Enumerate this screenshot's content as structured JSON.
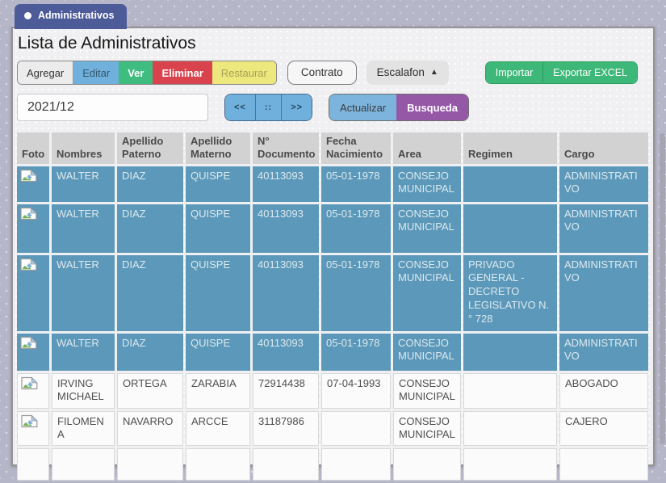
{
  "tab": {
    "label": "Administrativos"
  },
  "page": {
    "title": "Lista de Administrativos"
  },
  "toolbar": {
    "agregar": "Agregar",
    "editar": "Editar",
    "ver": "Ver",
    "eliminar": "Eliminar",
    "restaurar": "Restaurar",
    "contrato": "Contrato",
    "escalafon": "Escalafon",
    "escalafon_caret": "▲",
    "importar": "Importar",
    "exportar_excel": "Exportar EXCEL"
  },
  "filters": {
    "period_value": "2021/12",
    "pager_prev": "<<",
    "pager_mid": "::",
    "pager_next": ">>",
    "actualizar": "Actualizar",
    "busqueda": "Busqueda"
  },
  "table": {
    "columns": [
      "Foto",
      "Nombres",
      "Apellido Paterno",
      "Apellido Materno",
      "N° Documento",
      "Fecha Nacimiento",
      "Area",
      "Regimen",
      "Cargo"
    ],
    "rows": [
      {
        "has_foto": true,
        "nombres": "WALTER",
        "apellido_paterno": "DIAZ",
        "apellido_materno": "QUISPE",
        "documento": "40113093",
        "fecha_nacimiento": "05-01-1978",
        "area": "CONSEJO MUNICIPAL",
        "regimen": "",
        "cargo": "ADMINISTRATIVO",
        "highlighted": true
      },
      {
        "has_foto": true,
        "nombres": "WALTER",
        "apellido_paterno": "DIAZ",
        "apellido_materno": "QUISPE",
        "documento": "40113093",
        "fecha_nacimiento": "05-01-1978",
        "area": "CONSEJO MUNICIPAL",
        "regimen": "",
        "cargo": "ADMINISTRATIVO",
        "highlighted": true
      },
      {
        "has_foto": true,
        "nombres": "WALTER",
        "apellido_paterno": "DIAZ",
        "apellido_materno": "QUISPE",
        "documento": "40113093",
        "fecha_nacimiento": "05-01-1978",
        "area": "CONSEJO MUNICIPAL",
        "regimen": "PRIVADO GENERAL - DECRETO LEGISLATIVO N.° 728",
        "cargo": "ADMINISTRATIVO",
        "highlighted": true
      },
      {
        "has_foto": true,
        "nombres": "WALTER",
        "apellido_paterno": "DIAZ",
        "apellido_materno": "QUISPE",
        "documento": "40113093",
        "fecha_nacimiento": "05-01-1978",
        "area": "CONSEJO MUNICIPAL",
        "regimen": "",
        "cargo": "ADMINISTRATIVO",
        "highlighted": true
      },
      {
        "has_foto": true,
        "nombres": "IRVING MICHAEL",
        "apellido_paterno": "ORTEGA",
        "apellido_materno": "ZARABIA",
        "documento": "72914438",
        "fecha_nacimiento": "07-04-1993",
        "area": "CONSEJO MUNICIPAL",
        "regimen": "",
        "cargo": "ABOGADO",
        "highlighted": false
      },
      {
        "has_foto": true,
        "nombres": "FILOMENA",
        "apellido_paterno": "NAVARRO",
        "apellido_materno": "ARCCE",
        "documento": "31187986",
        "fecha_nacimiento": "",
        "area": "CONSEJO MUNICIPAL",
        "regimen": "",
        "cargo": "CAJERO",
        "highlighted": false
      },
      {
        "has_foto": false,
        "nombres": "",
        "apellido_paterno": "",
        "apellido_materno": "",
        "documento": "",
        "fecha_nacimiento": "",
        "area": "",
        "regimen": "",
        "cargo": "",
        "highlighted": false
      }
    ]
  },
  "colors": {
    "tab_bg": "#4d5b99",
    "highlight_row": "#5b98b9",
    "editar_btn": "#6fb0dd",
    "ver_btn": "#3fbc7f",
    "eliminar_btn": "#d8434e",
    "restaurar_btn": "#ece87d",
    "excel_btn": "#3eb878",
    "busqueda_btn": "#9458a6",
    "actualizar_btn": "#7cb4dd",
    "header_bg": "#d2d2d2"
  }
}
